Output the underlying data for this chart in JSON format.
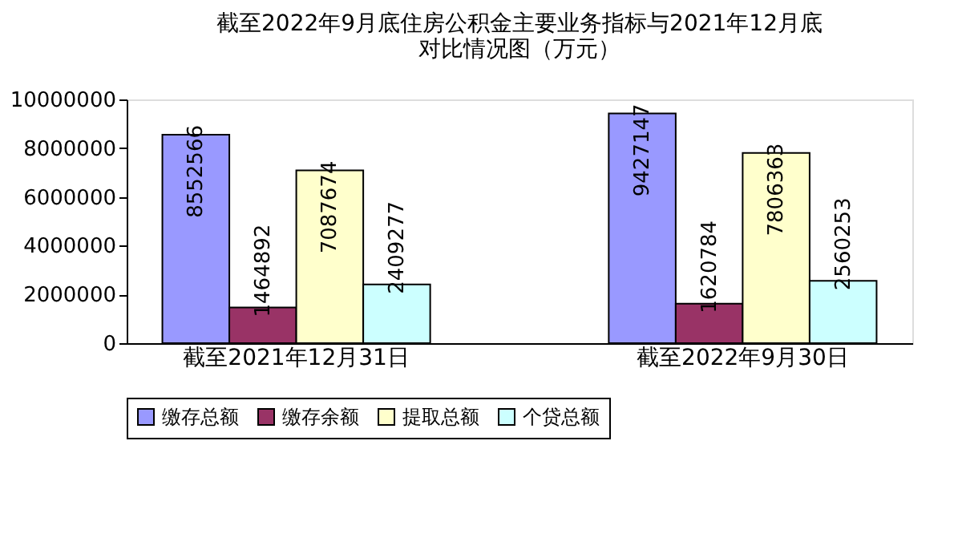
{
  "chart_data": {
    "type": "bar",
    "title": [
      "截至2022年9月底住房公积金主要业务指标与2021年12月底",
      "对比情况图（万元）"
    ],
    "categories": [
      "截至2021年12月31日",
      "截至2022年9月30日"
    ],
    "series": [
      {
        "name": "缴存总额",
        "color": "#9999ff",
        "values": [
          8552566,
          9427147
        ]
      },
      {
        "name": "缴存余额",
        "color": "#993366",
        "values": [
          1464892,
          1620784
        ]
      },
      {
        "name": "提取总额",
        "color": "#ffffcc",
        "values": [
          7087674,
          7806363
        ]
      },
      {
        "name": "个贷总额",
        "color": "#ccffff",
        "values": [
          2409277,
          2560253
        ]
      }
    ],
    "ylim": [
      0,
      10000000
    ],
    "yticks": [
      0,
      2000000,
      4000000,
      6000000,
      8000000,
      10000000
    ],
    "grid": false,
    "legend": "bottom",
    "data_labels": true
  }
}
